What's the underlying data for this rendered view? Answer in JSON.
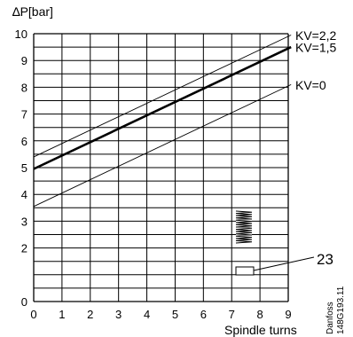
{
  "chart_data": {
    "type": "line",
    "title": "",
    "ylabel": "∆P[bar]",
    "xlabel": "Spindle turns",
    "xlim": [
      0,
      9
    ],
    "ylim": [
      0,
      10
    ],
    "grid": true,
    "x_ticks": [
      "0",
      "1",
      "2",
      "3",
      "4",
      "5",
      "6",
      "7",
      "8",
      "9"
    ],
    "y_ticks": [
      {
        "value": 0,
        "label": "0"
      },
      {
        "value": 2,
        "label": "2"
      },
      {
        "value": 3,
        "label": "3"
      },
      {
        "value": 4,
        "label": "4"
      },
      {
        "value": 5,
        "label": "5"
      },
      {
        "value": 6,
        "label": "6"
      },
      {
        "value": 7,
        "label": "7"
      },
      {
        "value": 8,
        "label": "8"
      },
      {
        "value": 9,
        "label": "9"
      },
      {
        "value": 10,
        "label": "10"
      }
    ],
    "series": [
      {
        "name": "KV=2,2",
        "emphasis": "thin",
        "x": [
          0,
          9
        ],
        "y": [
          5.4,
          9.9
        ]
      },
      {
        "name": "KV=1,5",
        "emphasis": "bold",
        "x": [
          0,
          9
        ],
        "y": [
          4.95,
          9.45
        ]
      },
      {
        "name": "KV=0",
        "emphasis": "thin",
        "x": [
          0,
          9
        ],
        "y": [
          3.55,
          8.05
        ]
      }
    ],
    "callout": {
      "label": "23"
    },
    "credit": {
      "line1": "Danfoss",
      "line2": "148G193.11"
    }
  }
}
